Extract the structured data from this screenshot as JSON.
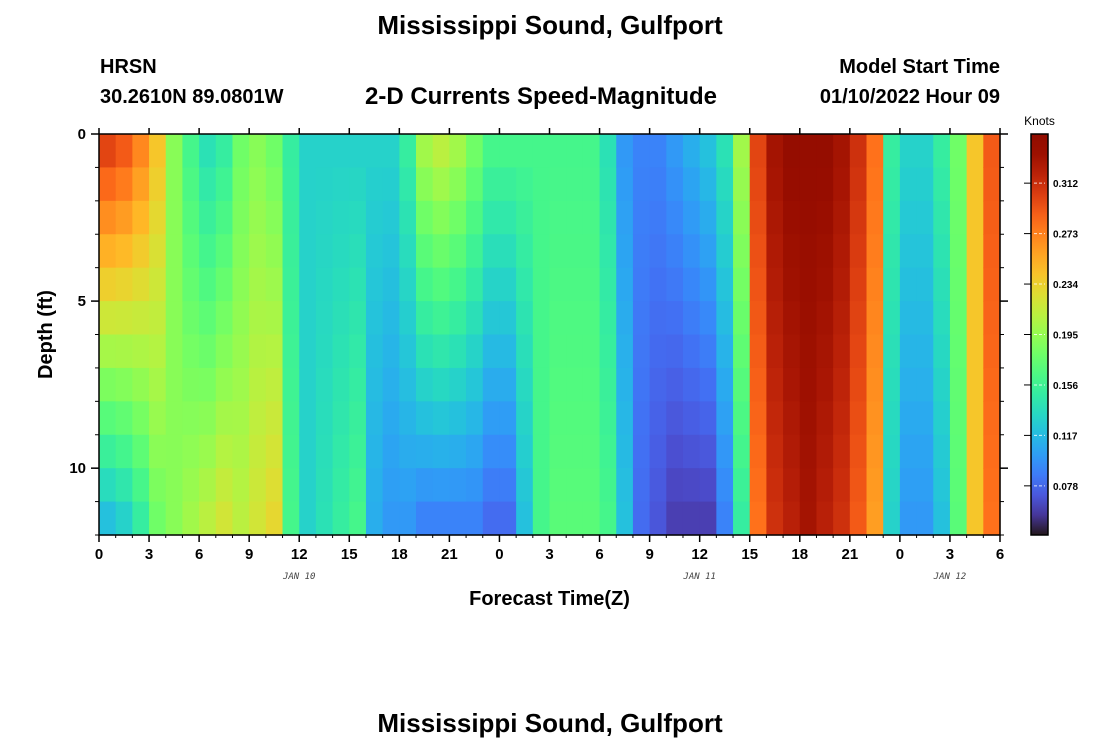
{
  "header": {
    "title": "Mississippi Sound, Gulfport",
    "station": "HRSN",
    "coords": "30.2610N  89.0801W",
    "subtitle": "2-D Currents Speed-Magnitude",
    "model_start_label": "Model Start Time",
    "model_start_value": "01/10/2022 Hour 09"
  },
  "footer": {
    "title": "Mississippi Sound, Gulfport"
  },
  "chart_data": {
    "type": "heatmap",
    "xlabel": "Forecast Time(Z)",
    "ylabel": "Depth (ft)",
    "x_tick_labels": [
      "0",
      "3",
      "6",
      "9",
      "12",
      "15",
      "18",
      "21",
      "0",
      "3",
      "6",
      "9",
      "12",
      "15",
      "18",
      "21",
      "0",
      "3",
      "6"
    ],
    "x_range_hours": [
      0,
      54
    ],
    "date_labels": [
      {
        "text": "JAN 10",
        "hour": 12
      },
      {
        "text": "JAN 11",
        "hour": 36
      },
      {
        "text": "JAN 12",
        "hour": 51
      }
    ],
    "y_ticks": [
      0,
      5,
      10
    ],
    "y_tick_labels": [
      "0",
      "5",
      "10"
    ],
    "ylim": [
      0,
      12
    ],
    "y_inverted": true,
    "depth_rows": 12,
    "colorbar": {
      "unit": "Knots",
      "ticks": [
        0.078,
        0.117,
        0.156,
        0.195,
        0.234,
        0.273,
        0.312
      ],
      "tick_labels": [
        "0.078",
        "0.117",
        "0.156",
        "0.195",
        "0.234",
        "0.273",
        "0.312"
      ],
      "range": [
        0.04,
        0.35
      ],
      "colormap": "turbo"
    },
    "speed_profile_by_hour": {
      "_hours": [
        0,
        1,
        2,
        3,
        4,
        5,
        6,
        7,
        8,
        9,
        10,
        11,
        12,
        13,
        14,
        15,
        16,
        17,
        18,
        19,
        20,
        21,
        22,
        23,
        24,
        25,
        26,
        27,
        28,
        29,
        30,
        31,
        32,
        33,
        34,
        35,
        36,
        37,
        38,
        39,
        40,
        41,
        42,
        43,
        44,
        45,
        46,
        47,
        48,
        49,
        50,
        51,
        52,
        53,
        54
      ],
      "surface": [
        0.3,
        0.29,
        0.27,
        0.24,
        0.19,
        0.16,
        0.14,
        0.15,
        0.18,
        0.19,
        0.18,
        0.15,
        0.13,
        0.13,
        0.13,
        0.13,
        0.13,
        0.13,
        0.15,
        0.2,
        0.21,
        0.2,
        0.18,
        0.16,
        0.16,
        0.16,
        0.16,
        0.16,
        0.16,
        0.16,
        0.14,
        0.1,
        0.09,
        0.09,
        0.1,
        0.11,
        0.12,
        0.14,
        0.2,
        0.3,
        0.33,
        0.34,
        0.34,
        0.34,
        0.33,
        0.31,
        0.28,
        0.15,
        0.13,
        0.13,
        0.15,
        0.18,
        0.24,
        0.29,
        0.31
      ],
      "bottom": [
        0.12,
        0.13,
        0.15,
        0.18,
        0.19,
        0.2,
        0.21,
        0.22,
        0.21,
        0.22,
        0.23,
        0.16,
        0.13,
        0.14,
        0.15,
        0.16,
        0.11,
        0.1,
        0.1,
        0.09,
        0.09,
        0.09,
        0.09,
        0.08,
        0.08,
        0.12,
        0.16,
        0.17,
        0.17,
        0.17,
        0.16,
        0.12,
        0.08,
        0.07,
        0.06,
        0.06,
        0.06,
        0.09,
        0.15,
        0.28,
        0.31,
        0.32,
        0.33,
        0.32,
        0.31,
        0.29,
        0.26,
        0.13,
        0.1,
        0.1,
        0.12,
        0.17,
        0.24,
        0.28,
        0.3
      ]
    }
  }
}
